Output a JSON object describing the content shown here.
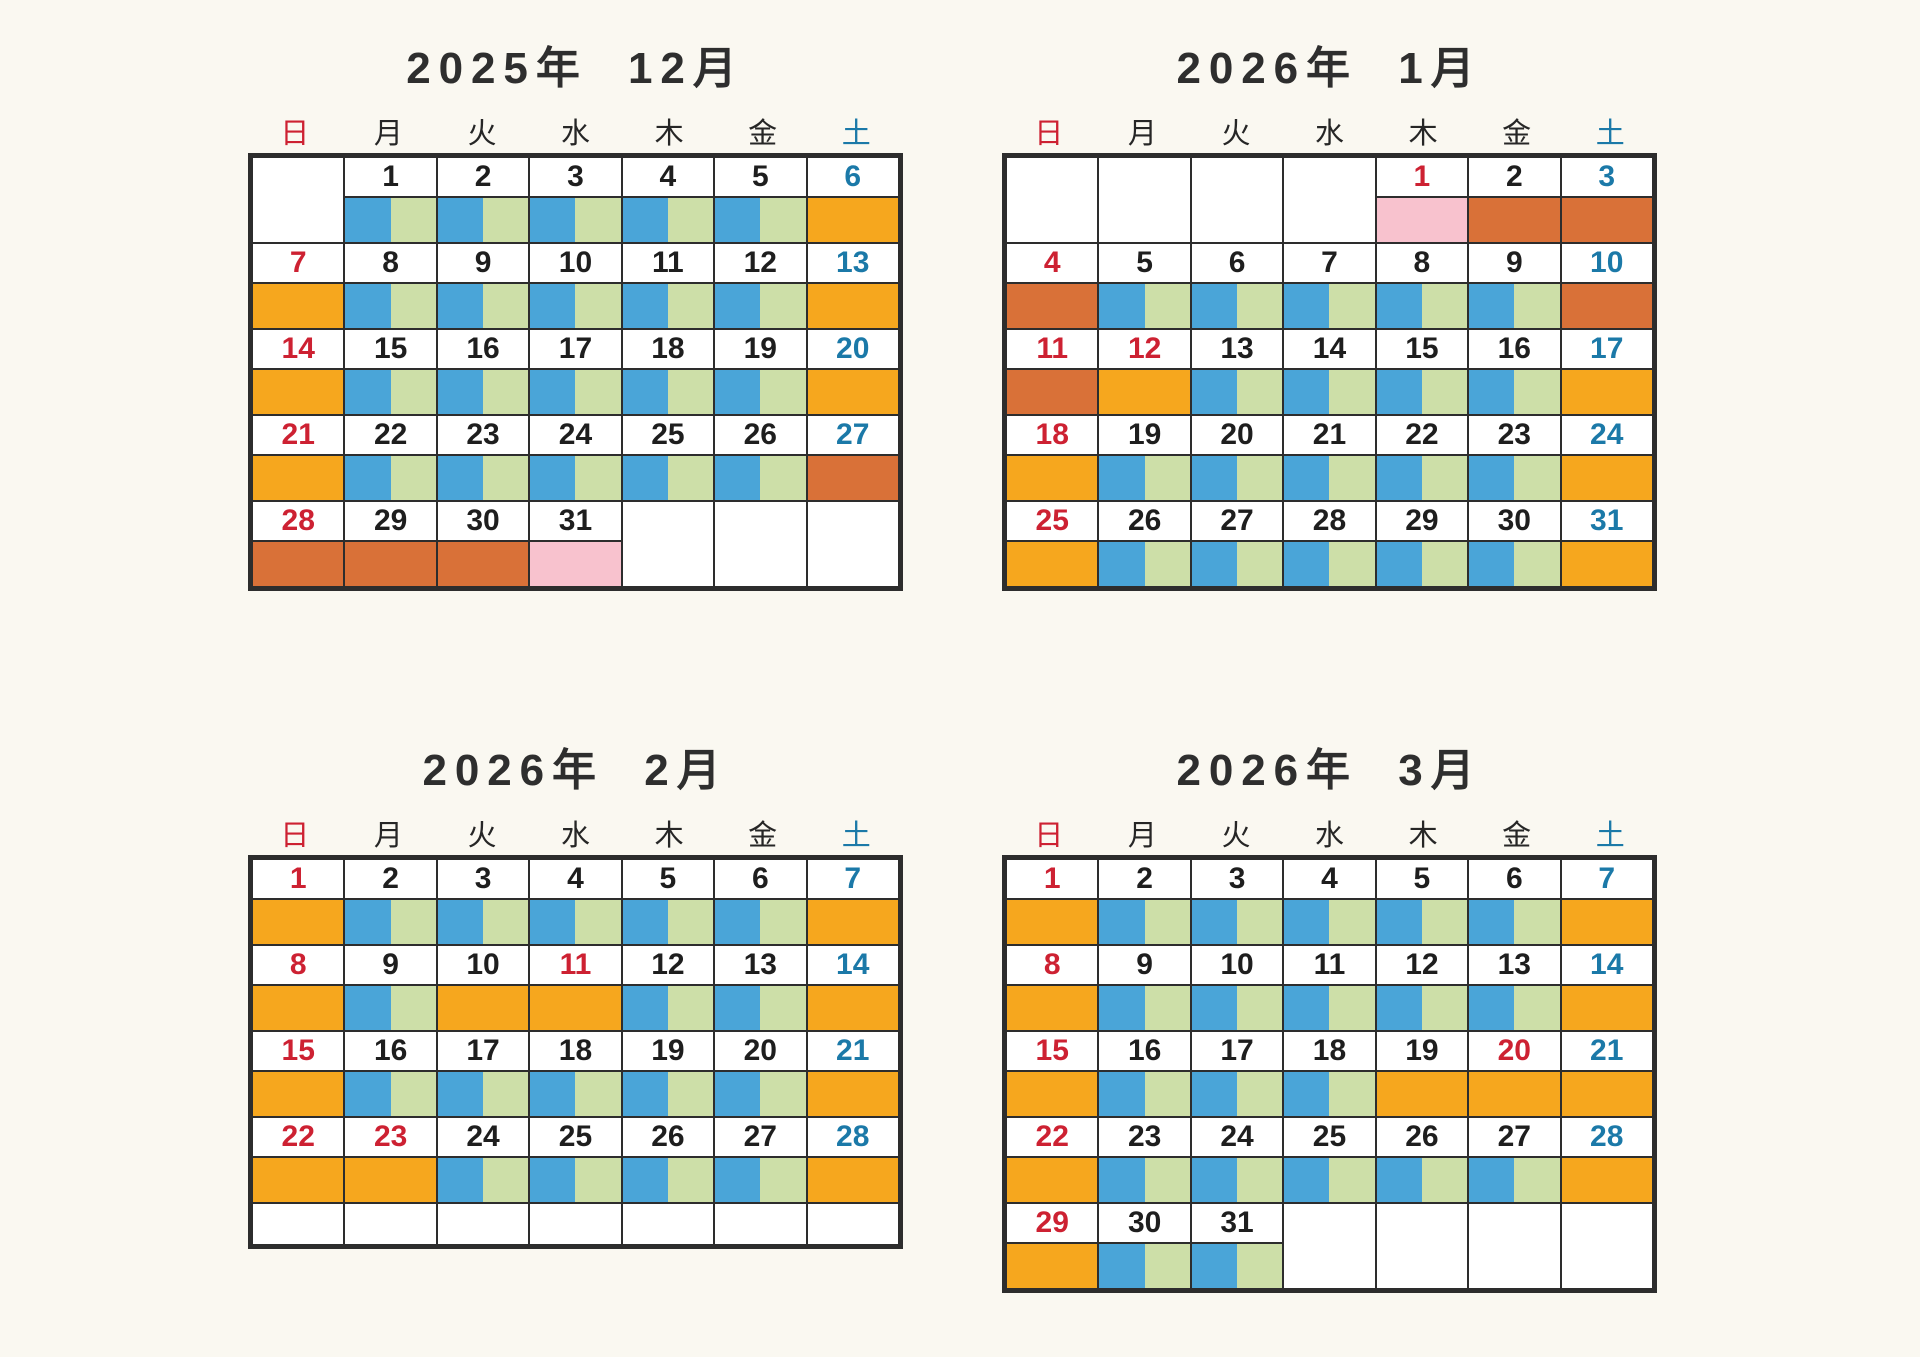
{
  "palette": {
    "paper": "#faf8f1",
    "ink": "#2d2d2d",
    "gold": "#f6a71e",
    "blue": "#4aa5d8",
    "green": "#cddfa8",
    "dark_orange": "#d97138",
    "pink": "#f8c2ce",
    "red_text": "#cd2132",
    "blue_text": "#1b79a8",
    "black_text": "#1e1e1e"
  },
  "calendars": [
    {
      "title": "2025年  12月",
      "weekday_headers": [
        "日",
        "月",
        "火",
        "水",
        "木",
        "金",
        "土"
      ],
      "trailing_empty_row": false,
      "weeks": [
        {
          "days": [
            {
              "n": "",
              "t": "",
              "c": "none"
            },
            {
              "n": "1",
              "t": "k",
              "c": "split"
            },
            {
              "n": "2",
              "t": "k",
              "c": "split"
            },
            {
              "n": "3",
              "t": "k",
              "c": "split"
            },
            {
              "n": "4",
              "t": "k",
              "c": "split"
            },
            {
              "n": "5",
              "t": "k",
              "c": "split"
            },
            {
              "n": "6",
              "t": "b",
              "c": "gold"
            }
          ]
        },
        {
          "days": [
            {
              "n": "7",
              "t": "r",
              "c": "gold"
            },
            {
              "n": "8",
              "t": "k",
              "c": "split"
            },
            {
              "n": "9",
              "t": "k",
              "c": "split"
            },
            {
              "n": "10",
              "t": "k",
              "c": "split"
            },
            {
              "n": "11",
              "t": "k",
              "c": "split"
            },
            {
              "n": "12",
              "t": "k",
              "c": "split"
            },
            {
              "n": "13",
              "t": "b",
              "c": "gold"
            }
          ]
        },
        {
          "days": [
            {
              "n": "14",
              "t": "r",
              "c": "gold"
            },
            {
              "n": "15",
              "t": "k",
              "c": "split"
            },
            {
              "n": "16",
              "t": "k",
              "c": "split"
            },
            {
              "n": "17",
              "t": "k",
              "c": "split"
            },
            {
              "n": "18",
              "t": "k",
              "c": "split"
            },
            {
              "n": "19",
              "t": "k",
              "c": "split"
            },
            {
              "n": "20",
              "t": "b",
              "c": "gold"
            }
          ]
        },
        {
          "days": [
            {
              "n": "21",
              "t": "r",
              "c": "gold"
            },
            {
              "n": "22",
              "t": "k",
              "c": "split"
            },
            {
              "n": "23",
              "t": "k",
              "c": "split"
            },
            {
              "n": "24",
              "t": "k",
              "c": "split"
            },
            {
              "n": "25",
              "t": "k",
              "c": "split"
            },
            {
              "n": "26",
              "t": "k",
              "c": "split"
            },
            {
              "n": "27",
              "t": "b",
              "c": "dko"
            }
          ]
        },
        {
          "days": [
            {
              "n": "28",
              "t": "r",
              "c": "dko"
            },
            {
              "n": "29",
              "t": "k",
              "c": "dko"
            },
            {
              "n": "30",
              "t": "k",
              "c": "dko"
            },
            {
              "n": "31",
              "t": "k",
              "c": "pink"
            },
            {
              "n": "",
              "t": "",
              "c": "none"
            },
            {
              "n": "",
              "t": "",
              "c": "none"
            },
            {
              "n": "",
              "t": "",
              "c": "none"
            }
          ]
        }
      ]
    },
    {
      "title": "2026年  1月",
      "weekday_headers": [
        "日",
        "月",
        "火",
        "水",
        "木",
        "金",
        "土"
      ],
      "trailing_empty_row": false,
      "weeks": [
        {
          "days": [
            {
              "n": "",
              "t": "",
              "c": "none"
            },
            {
              "n": "",
              "t": "",
              "c": "none"
            },
            {
              "n": "",
              "t": "",
              "c": "none"
            },
            {
              "n": "",
              "t": "",
              "c": "none"
            },
            {
              "n": "1",
              "t": "r",
              "c": "pink"
            },
            {
              "n": "2",
              "t": "k",
              "c": "dko"
            },
            {
              "n": "3",
              "t": "b",
              "c": "dko"
            }
          ]
        },
        {
          "days": [
            {
              "n": "4",
              "t": "r",
              "c": "dko"
            },
            {
              "n": "5",
              "t": "k",
              "c": "split"
            },
            {
              "n": "6",
              "t": "k",
              "c": "split"
            },
            {
              "n": "7",
              "t": "k",
              "c": "split"
            },
            {
              "n": "8",
              "t": "k",
              "c": "split"
            },
            {
              "n": "9",
              "t": "k",
              "c": "split"
            },
            {
              "n": "10",
              "t": "b",
              "c": "dko"
            }
          ]
        },
        {
          "days": [
            {
              "n": "11",
              "t": "r",
              "c": "dko"
            },
            {
              "n": "12",
              "t": "r",
              "c": "gold"
            },
            {
              "n": "13",
              "t": "k",
              "c": "split"
            },
            {
              "n": "14",
              "t": "k",
              "c": "split"
            },
            {
              "n": "15",
              "t": "k",
              "c": "split"
            },
            {
              "n": "16",
              "t": "k",
              "c": "split"
            },
            {
              "n": "17",
              "t": "b",
              "c": "gold"
            }
          ]
        },
        {
          "days": [
            {
              "n": "18",
              "t": "r",
              "c": "gold"
            },
            {
              "n": "19",
              "t": "k",
              "c": "split"
            },
            {
              "n": "20",
              "t": "k",
              "c": "split"
            },
            {
              "n": "21",
              "t": "k",
              "c": "split"
            },
            {
              "n": "22",
              "t": "k",
              "c": "split"
            },
            {
              "n": "23",
              "t": "k",
              "c": "split"
            },
            {
              "n": "24",
              "t": "b",
              "c": "gold"
            }
          ]
        },
        {
          "days": [
            {
              "n": "25",
              "t": "r",
              "c": "gold"
            },
            {
              "n": "26",
              "t": "k",
              "c": "split"
            },
            {
              "n": "27",
              "t": "k",
              "c": "split"
            },
            {
              "n": "28",
              "t": "k",
              "c": "split"
            },
            {
              "n": "29",
              "t": "k",
              "c": "split"
            },
            {
              "n": "30",
              "t": "k",
              "c": "split"
            },
            {
              "n": "31",
              "t": "b",
              "c": "gold"
            }
          ]
        }
      ]
    },
    {
      "title": "2026年  2月",
      "weekday_headers": [
        "日",
        "月",
        "火",
        "水",
        "木",
        "金",
        "土"
      ],
      "trailing_empty_row": true,
      "weeks": [
        {
          "days": [
            {
              "n": "1",
              "t": "r",
              "c": "gold"
            },
            {
              "n": "2",
              "t": "k",
              "c": "split"
            },
            {
              "n": "3",
              "t": "k",
              "c": "split"
            },
            {
              "n": "4",
              "t": "k",
              "c": "split"
            },
            {
              "n": "5",
              "t": "k",
              "c": "split"
            },
            {
              "n": "6",
              "t": "k",
              "c": "split"
            },
            {
              "n": "7",
              "t": "b",
              "c": "gold"
            }
          ]
        },
        {
          "days": [
            {
              "n": "8",
              "t": "r",
              "c": "gold"
            },
            {
              "n": "9",
              "t": "k",
              "c": "split"
            },
            {
              "n": "10",
              "t": "k",
              "c": "gold"
            },
            {
              "n": "11",
              "t": "r",
              "c": "gold"
            },
            {
              "n": "12",
              "t": "k",
              "c": "split"
            },
            {
              "n": "13",
              "t": "k",
              "c": "split"
            },
            {
              "n": "14",
              "t": "b",
              "c": "gold"
            }
          ]
        },
        {
          "days": [
            {
              "n": "15",
              "t": "r",
              "c": "gold"
            },
            {
              "n": "16",
              "t": "k",
              "c": "split"
            },
            {
              "n": "17",
              "t": "k",
              "c": "split"
            },
            {
              "n": "18",
              "t": "k",
              "c": "split"
            },
            {
              "n": "19",
              "t": "k",
              "c": "split"
            },
            {
              "n": "20",
              "t": "k",
              "c": "split"
            },
            {
              "n": "21",
              "t": "b",
              "c": "gold"
            }
          ]
        },
        {
          "days": [
            {
              "n": "22",
              "t": "r",
              "c": "gold"
            },
            {
              "n": "23",
              "t": "r",
              "c": "gold"
            },
            {
              "n": "24",
              "t": "k",
              "c": "split"
            },
            {
              "n": "25",
              "t": "k",
              "c": "split"
            },
            {
              "n": "26",
              "t": "k",
              "c": "split"
            },
            {
              "n": "27",
              "t": "k",
              "c": "split"
            },
            {
              "n": "28",
              "t": "b",
              "c": "gold"
            }
          ]
        }
      ]
    },
    {
      "title": "2026年  3月",
      "weekday_headers": [
        "日",
        "月",
        "火",
        "水",
        "木",
        "金",
        "土"
      ],
      "trailing_empty_row": false,
      "weeks": [
        {
          "days": [
            {
              "n": "1",
              "t": "r",
              "c": "gold"
            },
            {
              "n": "2",
              "t": "k",
              "c": "split"
            },
            {
              "n": "3",
              "t": "k",
              "c": "split"
            },
            {
              "n": "4",
              "t": "k",
              "c": "split"
            },
            {
              "n": "5",
              "t": "k",
              "c": "split"
            },
            {
              "n": "6",
              "t": "k",
              "c": "split"
            },
            {
              "n": "7",
              "t": "b",
              "c": "gold"
            }
          ]
        },
        {
          "days": [
            {
              "n": "8",
              "t": "r",
              "c": "gold"
            },
            {
              "n": "9",
              "t": "k",
              "c": "split"
            },
            {
              "n": "10",
              "t": "k",
              "c": "split"
            },
            {
              "n": "11",
              "t": "k",
              "c": "split"
            },
            {
              "n": "12",
              "t": "k",
              "c": "split"
            },
            {
              "n": "13",
              "t": "k",
              "c": "split"
            },
            {
              "n": "14",
              "t": "b",
              "c": "gold"
            }
          ]
        },
        {
          "days": [
            {
              "n": "15",
              "t": "r",
              "c": "gold"
            },
            {
              "n": "16",
              "t": "k",
              "c": "split"
            },
            {
              "n": "17",
              "t": "k",
              "c": "split"
            },
            {
              "n": "18",
              "t": "k",
              "c": "split"
            },
            {
              "n": "19",
              "t": "k",
              "c": "gold"
            },
            {
              "n": "20",
              "t": "r",
              "c": "gold"
            },
            {
              "n": "21",
              "t": "b",
              "c": "gold"
            }
          ]
        },
        {
          "days": [
            {
              "n": "22",
              "t": "r",
              "c": "gold"
            },
            {
              "n": "23",
              "t": "k",
              "c": "split"
            },
            {
              "n": "24",
              "t": "k",
              "c": "split"
            },
            {
              "n": "25",
              "t": "k",
              "c": "split"
            },
            {
              "n": "26",
              "t": "k",
              "c": "split"
            },
            {
              "n": "27",
              "t": "k",
              "c": "split"
            },
            {
              "n": "28",
              "t": "b",
              "c": "gold"
            }
          ]
        },
        {
          "days": [
            {
              "n": "29",
              "t": "r",
              "c": "gold"
            },
            {
              "n": "30",
              "t": "k",
              "c": "split"
            },
            {
              "n": "31",
              "t": "k",
              "c": "split"
            },
            {
              "n": "",
              "t": "",
              "c": "none"
            },
            {
              "n": "",
              "t": "",
              "c": "none"
            },
            {
              "n": "",
              "t": "",
              "c": "none"
            },
            {
              "n": "",
              "t": "",
              "c": "none"
            }
          ]
        }
      ]
    }
  ]
}
